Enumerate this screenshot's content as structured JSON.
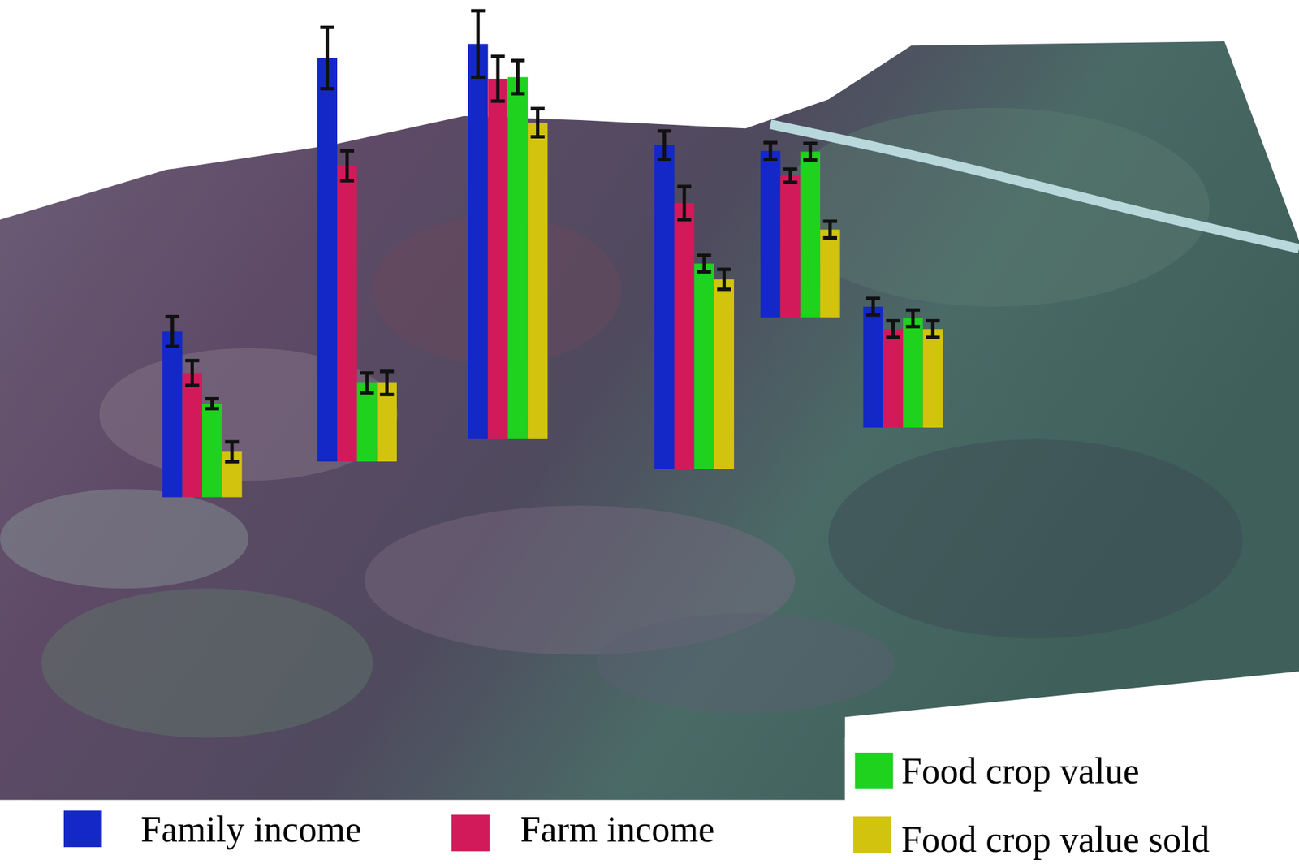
{
  "chart_data": {
    "type": "bar",
    "categories": [
      null,
      null,
      null,
      null,
      null,
      null
    ],
    "series": [
      {
        "name": "Family income",
        "color": "#1428c8",
        "values": [
          200,
          487,
          477,
          391,
          201,
          146
        ],
        "errors": [
          18,
          37,
          40,
          17,
          10,
          10
        ]
      },
      {
        "name": "Farm income",
        "color": "#d21a5a",
        "values": [
          150,
          357,
          435,
          321,
          171,
          119
        ],
        "errors": [
          15,
          18,
          27,
          20,
          8,
          10
        ]
      },
      {
        "name": "Food crop value",
        "color": "#1ed21e",
        "values": [
          113,
          95,
          437,
          248,
          200,
          132
        ],
        "errors": [
          6,
          12,
          20,
          10,
          10,
          10
        ]
      },
      {
        "name": "Food crop value sold",
        "color": "#d2c30f",
        "values": [
          55,
          95,
          382,
          229,
          106,
          119
        ],
        "errors": [
          12,
          14,
          17,
          12,
          10,
          10
        ]
      }
    ],
    "ylim": [
      0,
      520
    ],
    "tick_labels": false,
    "grid": false,
    "legend": "bottom"
  }
}
